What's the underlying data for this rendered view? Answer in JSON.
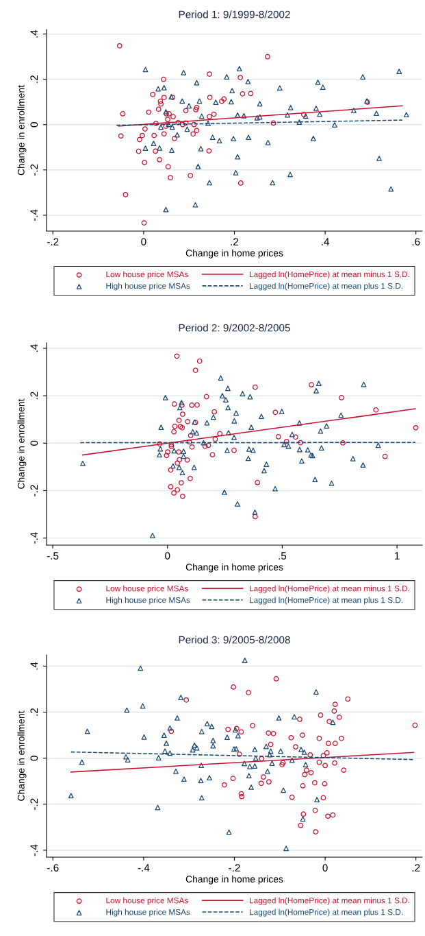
{
  "chart_data": [
    {
      "type": "scatter",
      "title": "Period 1: 9/1999-8/2002",
      "xlabel": "Change in home prices",
      "ylabel": "Change in enrollment",
      "xlim": [
        -0.214,
        0.614
      ],
      "ylim": [
        -0.47,
        0.42
      ],
      "xticks": [
        {
          "value": -0.2,
          "label": "-.2"
        },
        0,
        {
          "value": 0.2,
          "label": ".2"
        },
        {
          "value": 0.4,
          "label": ".4"
        },
        {
          "value": 0.6,
          "label": ".6"
        }
      ],
      "yticks": [
        {
          "value": -0.4,
          "label": "-.4"
        },
        {
          "value": -0.2,
          "label": "-.2"
        },
        0,
        {
          "value": 0.2,
          "label": ".2"
        },
        {
          "value": 0.4,
          "label": ".4"
        }
      ],
      "grid": "y",
      "legend": "bottom",
      "series": [
        {
          "name": "Low house price MSAs",
          "type": "scatter",
          "marker": "circle",
          "color": "#c8102e",
          "x": [
            -0.053,
            0.273,
            0.145,
            0.213,
            0.044,
            0.02,
            0.218,
            0.236,
            0.045,
            0.064,
            0.146,
            0.177,
            0.172,
            0.037,
            0.038,
            -0.046,
            0.011,
            0.033,
            0.093,
            0.115,
            0.117,
            0.493,
            0.05,
            0.056,
            0.065,
            0.145,
            0.155,
            0.353,
            0.053,
            0.027,
            0.076,
            0.086,
            0.093,
            0.111,
            0.286,
            0.049,
            0.003,
            0.117,
            0.045,
            0.109,
            0.068,
            -0.05,
            -0.003,
            0.023,
            -0.009,
            -0.011,
            0.026,
            0.144,
            0.035,
            0.002,
            0.054,
            0.059,
            0.103,
            0.214,
            -0.04,
            0.001
          ],
          "values": [
            0.348,
            0.3,
            0.223,
            0.208,
            0.2,
            0.133,
            0.136,
            0.137,
            0.12,
            0.12,
            0.12,
            0.113,
            0.103,
            0.103,
            0.091,
            0.048,
            0.055,
            0.068,
            0.062,
            0.066,
            0.075,
            0.099,
            0.048,
            0.048,
            0.035,
            0.035,
            0.046,
            0.044,
            0.023,
            0.005,
            0.009,
            0.0,
            0.007,
            0.0,
            0.007,
            -0.007,
            -0.019,
            -0.026,
            -0.041,
            -0.041,
            -0.061,
            -0.05,
            -0.048,
            -0.048,
            -0.066,
            -0.118,
            -0.117,
            -0.116,
            -0.155,
            -0.167,
            -0.186,
            -0.234,
            -0.225,
            -0.258,
            -0.309,
            -0.434
          ]
        },
        {
          "name": "High house price MSAs",
          "type": "scatter",
          "marker": "triangle",
          "color": "#1a476f",
          "x": [
            0.004,
            0.088,
            0.211,
            0.183,
            0.117,
            0.23,
            0.483,
            0.563,
            0.384,
            0.395,
            0.3,
            0.032,
            0.045,
            0.195,
            0.061,
            0.085,
            0.123,
            0.159,
            0.193,
            0.492,
            0.1,
            0.256,
            0.324,
            0.38,
            0.463,
            0.513,
            0.579,
            0.049,
            0.128,
            0.207,
            0.221,
            0.25,
            0.256,
            0.317,
            0.357,
            0.388,
            0.142,
            0.343,
            0.421,
            0.038,
            0.055,
            0.063,
            0.096,
            0.074,
            0.152,
            0.167,
            0.198,
            0.231,
            0.374,
            0.274,
            0.004,
            0.022,
            0.035,
            0.062,
            0.126,
            0.207,
            0.519,
            0.12,
            0.203,
            0.323,
            0.145,
            0.284,
            0.545,
            0.114,
            0.049
          ],
          "values": [
            0.243,
            0.23,
            0.247,
            0.211,
            0.185,
            0.19,
            0.211,
            0.235,
            0.187,
            0.165,
            0.162,
            0.158,
            0.163,
            0.15,
            0.123,
            0.104,
            0.104,
            0.099,
            0.101,
            0.105,
            0.083,
            0.092,
            0.075,
            0.072,
            0.063,
            0.05,
            0.044,
            0.057,
            0.037,
            0.042,
            0.039,
            0.03,
            0.034,
            0.043,
            0.038,
            0.046,
            0.006,
            0.011,
            -0.001,
            -0.011,
            0.001,
            -0.011,
            -0.02,
            -0.045,
            -0.056,
            -0.071,
            -0.062,
            -0.056,
            -0.061,
            -0.079,
            -0.104,
            -0.083,
            -0.103,
            -0.113,
            -0.106,
            -0.142,
            -0.149,
            -0.185,
            -0.212,
            -0.22,
            -0.256,
            -0.256,
            -0.284,
            -0.354,
            -0.375
          ]
        },
        {
          "name": "Lagged ln(HomePrice) at mean minus 1 S.D.",
          "type": "line",
          "line_style": "solid",
          "color": "#c8102e",
          "x": [
            -0.055,
            0.57
          ],
          "values": [
            -0.007,
            0.083
          ]
        },
        {
          "name": "Lagged ln(HomePrice) at mean plus 1 S.D.",
          "type": "line",
          "line_style": "dashed",
          "color": "#1a476f",
          "x": [
            -0.06,
            0.57
          ],
          "values": [
            -0.003,
            0.02
          ]
        }
      ]
    },
    {
      "type": "scatter",
      "title": "Period 2: 9/2002-8/2005",
      "xlabel": "Change in home prices",
      "ylabel": "Change in enrollment",
      "xlim": [
        -0.527,
        1.11
      ],
      "ylim": [
        -0.43,
        0.423
      ],
      "xticks": [
        {
          "value": -0.5,
          "label": "-.5"
        },
        0,
        {
          "value": 0.5,
          "label": ".5"
        },
        1
      ],
      "yticks": [
        {
          "value": -0.4,
          "label": "-.4"
        },
        {
          "value": -0.2,
          "label": "-.2"
        },
        0,
        {
          "value": 0.2,
          "label": ".2"
        },
        {
          "value": 0.4,
          "label": ".4"
        }
      ],
      "grid": "y",
      "legend": "bottom",
      "series": [
        {
          "name": "Low house price MSAs",
          "type": "scatter",
          "marker": "circle",
          "color": "#c8102e",
          "x": [
            0.041,
            0.14,
            0.122,
            0.382,
            0.627,
            0.17,
            0.758,
            0.03,
            0.063,
            0.106,
            0.129,
            0.908,
            0.204,
            0.47,
            0.066,
            0.05,
            0.088,
            0.122,
            0.032,
            0.056,
            0.064,
            1.082,
            0.028,
            0.101,
            0.228,
            0.208,
            0.483,
            0.558,
            0.519,
            0.095,
            0.579,
            0.764,
            -0.034,
            0.017,
            0.017,
            0.178,
            0.164,
            0.107,
            0.001,
            -0.004,
            0.049,
            0.196,
            0.29,
            0.948,
            0.052,
            0.086,
            0.043,
            0.014,
            0.099,
            0.06,
            0.392,
            0.014,
            0.043,
            0.028,
            0.066,
            0.382
          ],
          "values": [
            0.367,
            0.346,
            0.307,
            0.236,
            0.246,
            0.196,
            0.192,
            0.165,
            0.16,
            0.16,
            0.161,
            0.14,
            0.132,
            0.13,
            0.122,
            0.096,
            0.091,
            0.087,
            0.071,
            0.07,
            0.065,
            0.065,
            0.048,
            0.032,
            0.04,
            0.017,
            0.027,
            0.026,
            0.007,
            0.005,
            0.002,
            0.001,
            -0.003,
            -0.007,
            -0.014,
            -0.009,
            -0.013,
            -0.016,
            -0.037,
            -0.052,
            -0.037,
            -0.049,
            -0.03,
            -0.056,
            -0.07,
            -0.071,
            -0.084,
            -0.113,
            -0.149,
            -0.167,
            -0.166,
            -0.184,
            -0.197,
            -0.21,
            -0.224,
            -0.31
          ]
        },
        {
          "name": "High house price MSAs",
          "type": "scatter",
          "marker": "triangle",
          "color": "#1a476f",
          "x": [
            0.232,
            0.659,
            0.855,
            0.263,
            0.648,
            0.327,
            -0.009,
            0.36,
            0.239,
            0.254,
            0.061,
            0.054,
            0.264,
            0.299,
            0.498,
            0.409,
            0.756,
            0.2,
            0.291,
            0.172,
            0.118,
            0.575,
            -0.028,
            0.365,
            0.693,
            0.11,
            0.127,
            0.266,
            0.667,
            0.543,
            0.29,
            0.157,
            0.508,
            0.527,
            0.918,
            -0.031,
            -0.035,
            0.029,
            0.07,
            0.07,
            0.26,
            0.355,
            0.373,
            0.576,
            0.611,
            0.625,
            0.632,
            0.671,
            0.352,
            0.585,
            0.808,
            0.852,
            0.431,
            0.421,
            -0.369,
            0.024,
            0.051,
            0.065,
            0.116,
            0.643,
            0.715,
            0.469,
            0.248,
            0.305,
            0.381,
            -0.065
          ],
          "values": [
            0.275,
            0.252,
            0.248,
            0.231,
            0.221,
            0.209,
            0.192,
            0.196,
            0.2,
            0.183,
            0.171,
            0.15,
            0.15,
            0.127,
            0.134,
            0.113,
            0.118,
            0.11,
            0.094,
            0.086,
            0.089,
            0.085,
            0.067,
            0.067,
            0.073,
            0.048,
            0.043,
            0.044,
            0.051,
            0.037,
            0.024,
            0.002,
            -0.006,
            -0.013,
            -0.009,
            -0.024,
            -0.049,
            -0.032,
            -0.034,
            -0.055,
            -0.03,
            -0.025,
            -0.03,
            -0.027,
            -0.028,
            -0.05,
            -0.052,
            -0.02,
            -0.064,
            -0.075,
            -0.065,
            -0.092,
            -0.089,
            -0.116,
            -0.085,
            -0.096,
            -0.102,
            -0.124,
            -0.102,
            -0.153,
            -0.169,
            -0.192,
            -0.207,
            -0.256,
            -0.291,
            -0.389
          ]
        },
        {
          "name": "Lagged ln(HomePrice) at mean minus 1 S.D.",
          "type": "line",
          "line_style": "solid",
          "color": "#c8102e",
          "x": [
            -0.37,
            1.08
          ],
          "values": [
            -0.05,
            0.145
          ]
        },
        {
          "name": "Lagged ln(HomePrice) at mean plus 1 S.D.",
          "type": "line",
          "line_style": "dashed",
          "color": "#1a476f",
          "x": [
            -0.38,
            1.08
          ],
          "values": [
            0.002,
            0.003
          ]
        }
      ]
    },
    {
      "type": "scatter",
      "title": "Period 3: 9/2005-8/2008",
      "xlabel": "Change in home prices",
      "ylabel": "Change in enrollment",
      "xlim": [
        -0.614,
        0.214
      ],
      "ylim": [
        -0.43,
        0.449
      ],
      "xticks": [
        {
          "value": -0.6,
          "label": "-.6"
        },
        {
          "value": -0.4,
          "label": "-.4"
        },
        {
          "value": -0.2,
          "label": "-.2"
        },
        0,
        {
          "value": 0.2,
          "label": ".2"
        }
      ],
      "yticks": [
        {
          "value": -0.4,
          "label": "-.4"
        },
        {
          "value": -0.2,
          "label": "-.2"
        },
        0,
        {
          "value": 0.2,
          "label": ".2"
        },
        {
          "value": 0.4,
          "label": ".4"
        }
      ],
      "grid": "y",
      "legend": "bottom",
      "series": [
        {
          "name": "Low house price MSAs",
          "type": "scatter",
          "marker": "circle",
          "color": "#c8102e",
          "x": [
            -0.108,
            -0.202,
            -0.169,
            -0.306,
            0.05,
            0.022,
            0.02,
            0.031,
            -0.01,
            -0.056,
            0.009,
            0.198,
            -0.16,
            -0.214,
            -0.195,
            -0.185,
            -0.339,
            -0.125,
            -0.114,
            -0.05,
            -0.075,
            -0.013,
            0.036,
            0.007,
            0.022,
            -0.12,
            -0.065,
            0.004,
            -0.189,
            -0.033,
            -0.004,
            -0.14,
            -0.095,
            -0.093,
            -0.013,
            0.0,
            0.021,
            -0.041,
            0.041,
            -0.031,
            -0.045,
            -0.136,
            -0.203,
            -0.222,
            -0.141,
            -0.124,
            -0.049,
            -0.023,
            -0.001,
            -0.185,
            -0.184,
            -0.073,
            -0.004,
            -0.022,
            -0.048,
            0.006,
            0.017,
            -0.054,
            -0.021
          ],
          "values": [
            0.345,
            0.309,
            0.285,
            0.253,
            0.257,
            0.234,
            0.205,
            0.178,
            0.187,
            0.169,
            0.159,
            0.143,
            0.141,
            0.125,
            0.129,
            0.114,
            0.117,
            0.109,
            0.107,
            0.1,
            0.089,
            0.086,
            0.086,
            0.064,
            0.064,
            0.06,
            0.049,
            0.023,
            0.017,
            0.014,
            0.011,
            -0.002,
            -0.028,
            -0.02,
            -0.018,
            -0.032,
            -0.021,
            -0.052,
            -0.052,
            -0.063,
            -0.071,
            -0.082,
            -0.088,
            -0.116,
            -0.109,
            -0.103,
            -0.12,
            -0.107,
            -0.111,
            -0.155,
            -0.167,
            -0.17,
            -0.172,
            -0.227,
            -0.243,
            -0.252,
            -0.247,
            -0.292,
            -0.32
          ]
        },
        {
          "name": "High house price MSAs",
          "type": "scatter",
          "marker": "triangle",
          "color": "#1a476f",
          "x": [
            -0.177,
            -0.407,
            -0.02,
            -0.318,
            -0.402,
            -0.437,
            -0.102,
            -0.068,
            -0.326,
            0.017,
            -0.26,
            -0.25,
            -0.342,
            -0.524,
            -0.272,
            -0.198,
            -0.355,
            -0.192,
            -0.399,
            -0.216,
            -0.247,
            -0.35,
            -0.247,
            -0.288,
            -0.283,
            -0.292,
            -0.13,
            -0.201,
            -0.196,
            -0.155,
            -0.12,
            -0.098,
            -0.053,
            -0.046,
            -0.353,
            -0.342,
            -0.122,
            -0.439,
            -0.435,
            -0.367,
            -0.153,
            -0.536,
            -0.073,
            -0.178,
            -0.273,
            -0.166,
            -0.155,
            -0.117,
            -0.043,
            -0.329,
            -0.127,
            -0.168,
            -0.255,
            -0.311,
            -0.274,
            -0.163,
            -0.092,
            -0.56,
            -0.272,
            -0.018,
            -0.369,
            -0.049,
            -0.212,
            -0.086
          ],
          "values": [
            0.425,
            0.391,
            0.288,
            0.264,
            0.227,
            0.209,
            0.175,
            0.18,
            0.175,
            0.156,
            0.15,
            0.138,
            0.131,
            0.117,
            0.116,
            0.123,
            0.1,
            0.098,
            0.092,
            0.091,
            0.077,
            0.065,
            0.054,
            0.056,
            0.045,
            0.036,
            0.051,
            0.04,
            0.041,
            0.038,
            0.031,
            0.031,
            0.038,
            0.026,
            0.031,
            0.022,
            0.015,
            0.006,
            -0.007,
            0.002,
            0.0,
            -0.017,
            -0.009,
            -0.023,
            -0.031,
            -0.036,
            -0.034,
            -0.022,
            -0.028,
            -0.057,
            -0.057,
            -0.076,
            -0.085,
            -0.091,
            -0.097,
            -0.126,
            -0.139,
            -0.163,
            -0.172,
            -0.18,
            -0.214,
            -0.264,
            -0.321,
            -0.392
          ]
        },
        {
          "name": "Lagged ln(HomePrice) at mean minus 1 S.D.",
          "type": "line",
          "line_style": "solid",
          "color": "#c8102e",
          "x": [
            -0.56,
            0.195
          ],
          "values": [
            -0.06,
            0.025
          ]
        },
        {
          "name": "Lagged ln(HomePrice) at mean plus 1 S.D.",
          "type": "line",
          "line_style": "dashed",
          "color": "#1a476f",
          "x": [
            -0.56,
            0.195
          ],
          "values": [
            0.027,
            -0.006
          ]
        }
      ]
    }
  ]
}
